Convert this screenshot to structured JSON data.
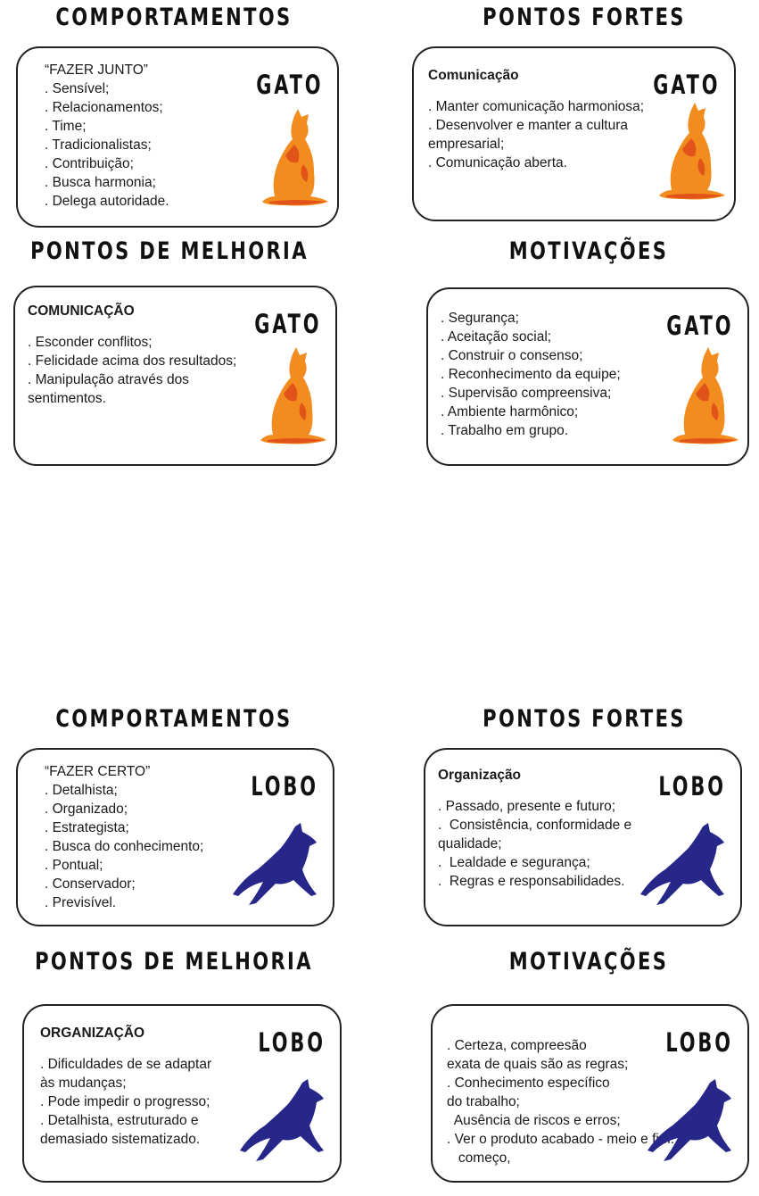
{
  "colors": {
    "cat": "#f28c1e",
    "cat_dark": "#e2531a",
    "wolf": "#27278a"
  },
  "panels": [
    {
      "heading": "COMPORTAMENTOS",
      "animal": "GATO",
      "icon": "cat-icon",
      "title": "",
      "lines": [
        "“FAZER JUNTO”",
        ". Sensível;",
        ". Relacionamentos;",
        ". Time;",
        ". Tradicionalistas;",
        ". Contribuição;",
        ". Busca harmonia;",
        ". Delega autoridade."
      ]
    },
    {
      "heading": "PONTOS FORTES",
      "animal": "GATO",
      "icon": "cat-icon",
      "title": "Comunicação",
      "lines": [
        ". Manter comunicação harmoniosa;",
        ". Desenvolver e manter a cultura",
        "empresarial;",
        ". Comunicação aberta."
      ]
    },
    {
      "heading": "PONTOS DE MELHORIA",
      "animal": "GATO",
      "icon": "cat-icon",
      "title": "COMUNICAÇÃO",
      "lines": [
        ". Esconder conflitos;",
        ". Felicidade acima dos resultados;",
        ". Manipulação através dos",
        "sentimentos."
      ]
    },
    {
      "heading": "MOTIVAÇÕES",
      "animal": "GATO",
      "icon": "cat-icon",
      "title": "",
      "lines": [
        ". Segurança;",
        ". Aceitação social;",
        ". Construir o consenso;",
        ". Reconhecimento da equipe;",
        ". Supervisão compreensiva;",
        ". Ambiente harmônico;",
        ". Trabalho em grupo."
      ]
    },
    {
      "heading": "COMPORTAMENTOS",
      "animal": "LOBO",
      "icon": "wolf-icon",
      "title": "",
      "lines": [
        "“FAZER CERTO”",
        ". Detalhista;",
        ". Organizado;",
        ". Estrategista;",
        ". Busca do conhecimento;",
        ". Pontual;",
        ". Conservador;",
        ". Previsível."
      ]
    },
    {
      "heading": "PONTOS FORTES",
      "animal": "LOBO",
      "icon": "wolf-icon",
      "title": "Organização",
      "lines": [
        ". Passado, presente e futuro;",
        ".  Consistência, conformidade e",
        "qualidade;",
        ".  Lealdade e segurança;",
        ".  Regras e responsabilidades."
      ]
    },
    {
      "heading": "PONTOS DE MELHORIA",
      "animal": "LOBO",
      "icon": "wolf-icon",
      "title": "ORGANIZAÇÃO",
      "lines": [
        ". Dificuldades de se adaptar",
        "às mudanças;",
        ". Pode impedir o progresso;",
        ". Detalhista, estruturado e",
        "demasiado sistematizado."
      ]
    },
    {
      "heading": "MOTIVAÇÕES",
      "animal": "LOBO",
      "icon": "wolf-icon",
      "title": "",
      "lines": [
        ". Certeza, compreesão",
        "exata de quais são as regras;",
        ". Conhecimento específico",
        "do trabalho;",
        "  Ausência de riscos e erros;",
        ". Ver o produto acabado - meio e fim.",
        "   começo,"
      ]
    }
  ]
}
